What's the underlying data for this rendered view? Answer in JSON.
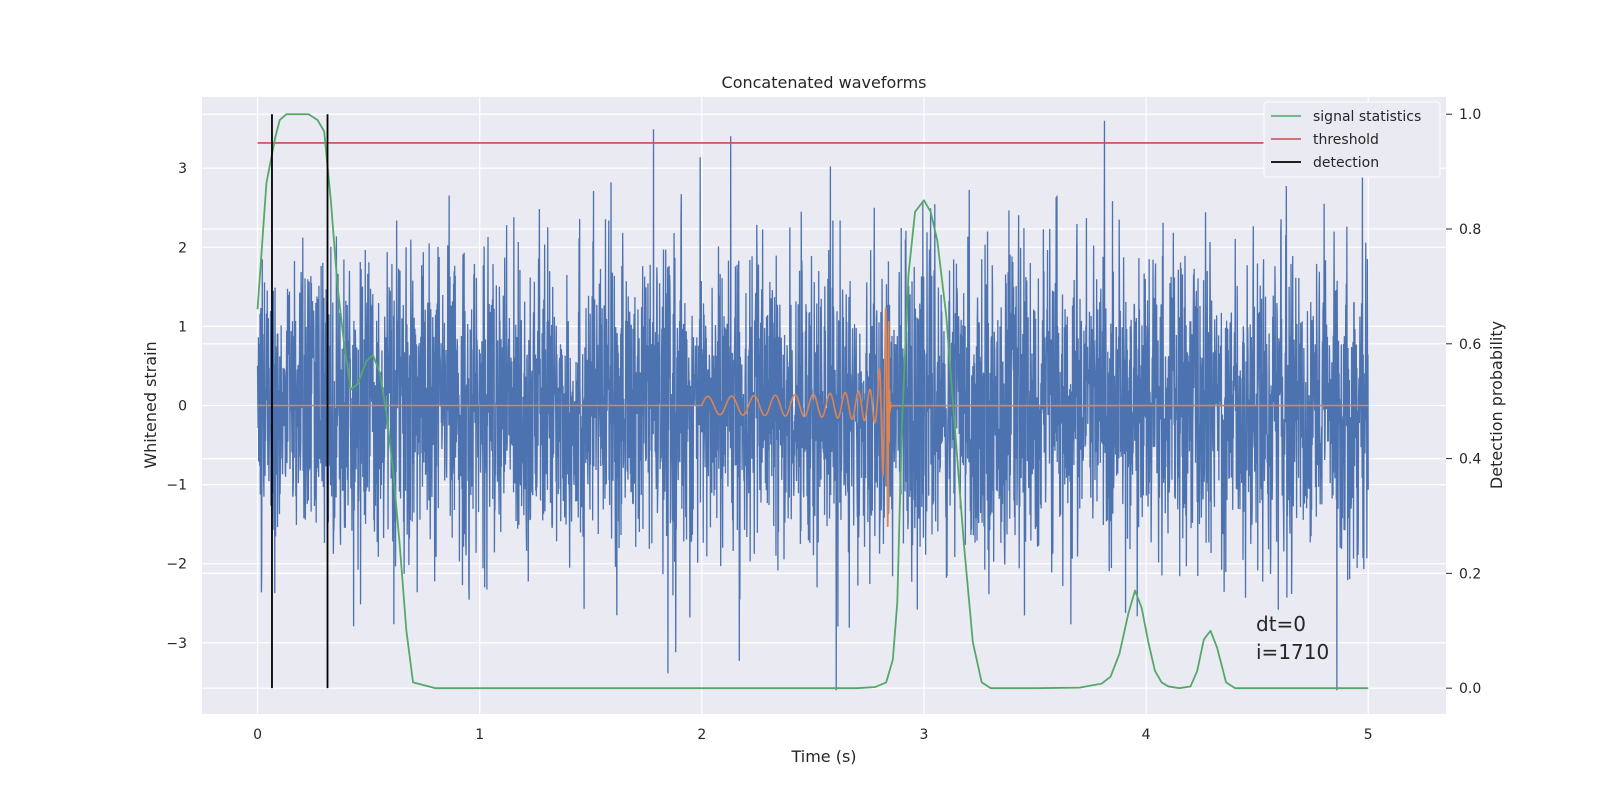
{
  "chart_data": {
    "type": "line",
    "title": "Concatenated waveforms",
    "xlabel": "Time (s)",
    "ylabel": "Whitened strain",
    "y2label": "Detection probability",
    "xlim": [
      -0.25,
      5.35
    ],
    "ylim": [
      -3.9,
      3.9
    ],
    "y2lim": [
      -0.045,
      1.03
    ],
    "x_ticks": [
      0,
      1,
      2,
      3,
      4,
      5
    ],
    "y_ticks": [
      -3,
      -2,
      -1,
      0,
      1,
      2,
      3
    ],
    "y_tick_labels": [
      "−3",
      "−2",
      "−1",
      "0",
      "1",
      "2",
      "3"
    ],
    "y2_ticks": [
      0.0,
      0.2,
      0.4,
      0.6,
      0.8,
      1.0
    ],
    "y2_tick_labels": [
      "0.0",
      "0.2",
      "0.4",
      "0.6",
      "0.8",
      "1.0"
    ],
    "grid": true,
    "legend_position": "top-right",
    "series": [
      {
        "key": "noise",
        "axis": "left",
        "color": "#4c72b0",
        "x_range": [
          0,
          5
        ],
        "envelope": 1.3,
        "spike_max": 3.6
      },
      {
        "key": "chirp",
        "axis": "left",
        "color": "#dd8452",
        "x_range": [
          2.0,
          2.85
        ],
        "merger_time": 2.84,
        "amplitude_start": 0.12,
        "amplitude_peak": 1.7
      },
      {
        "name": "signal statistics",
        "axis": "right",
        "color": "#55a868",
        "x": [
          0,
          0.04,
          0.08,
          0.1,
          0.13,
          0.18,
          0.23,
          0.27,
          0.3,
          0.33,
          0.36,
          0.39,
          0.42,
          0.45,
          0.49,
          0.52,
          0.55,
          0.58,
          0.61,
          0.64,
          0.67,
          0.7,
          0.8,
          1.0,
          1.5,
          2.0,
          2.5,
          2.7,
          2.78,
          2.83,
          2.86,
          2.88,
          2.9,
          2.93,
          2.96,
          3.0,
          3.03,
          3.06,
          3.1,
          3.14,
          3.18,
          3.22,
          3.26,
          3.3,
          3.5,
          3.7,
          3.8,
          3.84,
          3.88,
          3.92,
          3.95,
          3.98,
          4.01,
          4.04,
          4.07,
          4.1,
          4.15,
          4.2,
          4.23,
          4.26,
          4.29,
          4.32,
          4.36,
          4.4,
          4.6,
          5.0
        ],
        "y": [
          0.66,
          0.88,
          0.96,
          0.99,
          1.0,
          1.0,
          1.0,
          0.99,
          0.97,
          0.85,
          0.7,
          0.6,
          0.52,
          0.53,
          0.57,
          0.58,
          0.55,
          0.48,
          0.38,
          0.25,
          0.1,
          0.01,
          0.0,
          0.0,
          0.0,
          0.0,
          0.0,
          0.0,
          0.002,
          0.01,
          0.05,
          0.15,
          0.45,
          0.72,
          0.83,
          0.85,
          0.83,
          0.78,
          0.65,
          0.45,
          0.25,
          0.08,
          0.01,
          0.0,
          0.0,
          0.001,
          0.008,
          0.02,
          0.06,
          0.13,
          0.17,
          0.14,
          0.08,
          0.03,
          0.01,
          0.003,
          0.0,
          0.003,
          0.03,
          0.085,
          0.1,
          0.07,
          0.01,
          0.0,
          0.0,
          0.0
        ]
      },
      {
        "name": "threshold",
        "axis": "right",
        "color": "#c44e52",
        "x": [
          0,
          5
        ],
        "y": [
          0.95,
          0.95
        ]
      }
    ],
    "detections": {
      "name": "detection",
      "color": "#000000",
      "x": [
        0.065,
        0.315
      ],
      "y_span": [
        0.0,
        1.0
      ]
    },
    "annotation_lines": [
      "dt=0",
      "i=1710"
    ]
  }
}
